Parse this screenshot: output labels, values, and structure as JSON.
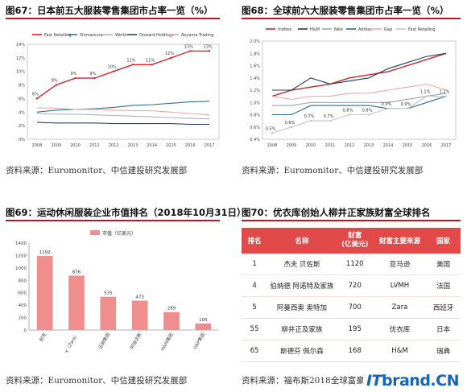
{
  "panels": {
    "p67": {
      "title": "图67：日本前五大服装零售集团市占率一览（%）",
      "source": "资料来源：Euromonitor、中信建投研究发展部"
    },
    "p68": {
      "title": "图68：全球前六大服装零售集团市占率一览（%）",
      "source": "资料来源：Euromonitor、中信建投研究发展部"
    },
    "p69": {
      "title": "图69：运动休闲服装企业市值排名（2018年10月31日）",
      "source": "资料来源：Euromonitor、中信建投研究发展部"
    },
    "p70": {
      "title": "图70：优衣库创始人柳井正家族财富全球排名",
      "source": "资料来源：福布斯2018全球富豪排行",
      "table": {
        "headers": [
          "排名",
          "名称",
          "财富\n(亿美元)",
          "财富主要来源",
          "国家"
        ],
        "rows": [
          [
            "1",
            "杰夫 贝佐斯",
            "1120",
            "亚马逊",
            "美国"
          ],
          [
            "4",
            "伯纳德 阿诺特及家族",
            "720",
            "LVMH",
            "法国"
          ],
          [
            "5",
            "阿曼西奥 奥特加",
            "700",
            "Zara",
            "西班牙"
          ],
          [
            "55",
            "柳井正及家族",
            "195",
            "优衣库",
            "日本"
          ],
          [
            "65",
            "斯德芬 佩尔森",
            "168",
            "H&M",
            "瑞典"
          ]
        ]
      }
    }
  },
  "logo": {
    "prefix": "IT",
    "text": "brand.CN"
  },
  "chart_data": [
    {
      "type": "line",
      "x": [
        "2008",
        "2009",
        "2010",
        "2011",
        "2012",
        "2013",
        "2014",
        "2015",
        "2016",
        "2017"
      ],
      "ylim": [
        0,
        14
      ],
      "yticks": [
        "0%",
        "2%",
        "4%",
        "6%",
        "8%",
        "10%",
        "12%",
        "14%"
      ],
      "series": [
        {
          "name": "Fast Retailing",
          "color": "#d8202a",
          "values": [
            6,
            8,
            9,
            9,
            10,
            11,
            11,
            12,
            13,
            13
          ],
          "labels": [
            "6%",
            "8%",
            "9%",
            "9%",
            "10%",
            "11%",
            "11%",
            "12%",
            "13%",
            "13%"
          ]
        },
        {
          "name": "Shimamura",
          "color": "#2f6f93",
          "values": [
            4.0,
            4.3,
            4.4,
            4.5,
            4.7,
            5.0,
            5.1,
            5.3,
            5.5,
            5.6
          ]
        },
        {
          "name": "World",
          "color": "#aab4bc",
          "values": [
            3.8,
            3.7,
            3.7,
            3.6,
            3.5,
            3.4,
            3.3,
            3.2,
            3.1,
            3.0
          ]
        },
        {
          "name": "Onward Holdings",
          "color": "#2b3f66",
          "values": [
            2.5,
            2.4,
            2.4,
            2.4,
            2.3,
            2.3,
            2.3,
            2.3,
            2.2,
            2.2
          ]
        },
        {
          "name": "Aoyama Trading",
          "color": "#f0a8a8",
          "values": [
            4.6,
            4.6,
            4.4,
            4.4,
            4.3,
            4.2,
            4.2,
            4.0,
            3.8,
            3.6
          ]
        }
      ]
    },
    {
      "type": "line",
      "x": [
        "2008",
        "2009",
        "2010",
        "2011",
        "2012",
        "2013",
        "2014",
        "2015",
        "2016",
        "2017"
      ],
      "ylim": [
        0.4,
        2.0
      ],
      "yticks": [
        "0.4%",
        "0.6%",
        "0.8%",
        "1.0%",
        "1.2%",
        "1.4%",
        "1.6%",
        "1.8%",
        "2.0%"
      ],
      "series": [
        {
          "name": "Inditex",
          "color": "#c4262e",
          "values": [
            1.1,
            1.2,
            1.25,
            1.3,
            1.4,
            1.45,
            1.5,
            1.6,
            1.7,
            1.8
          ]
        },
        {
          "name": "H&M",
          "color": "#1f3a66",
          "values": [
            1.2,
            1.2,
            1.4,
            1.3,
            1.35,
            1.4,
            1.55,
            1.65,
            1.75,
            1.8
          ]
        },
        {
          "name": "Nike",
          "color": "#9aa5b0",
          "values": [
            0.95,
            0.95,
            1.0,
            1.0,
            1.0,
            1.0,
            1.0,
            1.05,
            1.1,
            1.15
          ]
        },
        {
          "name": "Adidas",
          "color": "#2c6b8a",
          "values": [
            0.8,
            0.8,
            0.95,
            0.95,
            0.95,
            0.95,
            0.9,
            0.9,
            1.0,
            1.1
          ]
        },
        {
          "name": "Gap",
          "color": "#f3a9a9",
          "values": [
            1.1,
            1.05,
            1.1,
            1.1,
            1.15,
            1.15,
            1.2,
            1.25,
            1.3,
            1.2
          ]
        },
        {
          "name": "Fast Retailing",
          "color": "#c7c7c7",
          "values": [
            0.5,
            0.6,
            0.7,
            0.7,
            0.8,
            0.8,
            0.9,
            0.9,
            1.1,
            1.1
          ],
          "labels": [
            "0.5%",
            "0.6%",
            "0.7%",
            "0.7%",
            "0.8%",
            "0.8%",
            "0.9%",
            "0.9%",
            "1.1%",
            "1.1%"
          ]
        }
      ]
    },
    {
      "type": "bar",
      "legend": "市值（亿美元）",
      "color": "#f08e8e",
      "categories": [
        "耐克",
        "Inditex（Zara）",
        "迅销集团",
        "阿迪达斯",
        "H&M集团",
        "GAP集团"
      ],
      "values": [
        1192,
        876,
        535,
        473,
        289,
        105
      ],
      "ylim": [
        0,
        1400
      ],
      "yticks": [
        "0",
        "200",
        "400",
        "600",
        "800",
        "1000",
        "1200",
        "1400"
      ]
    }
  ]
}
